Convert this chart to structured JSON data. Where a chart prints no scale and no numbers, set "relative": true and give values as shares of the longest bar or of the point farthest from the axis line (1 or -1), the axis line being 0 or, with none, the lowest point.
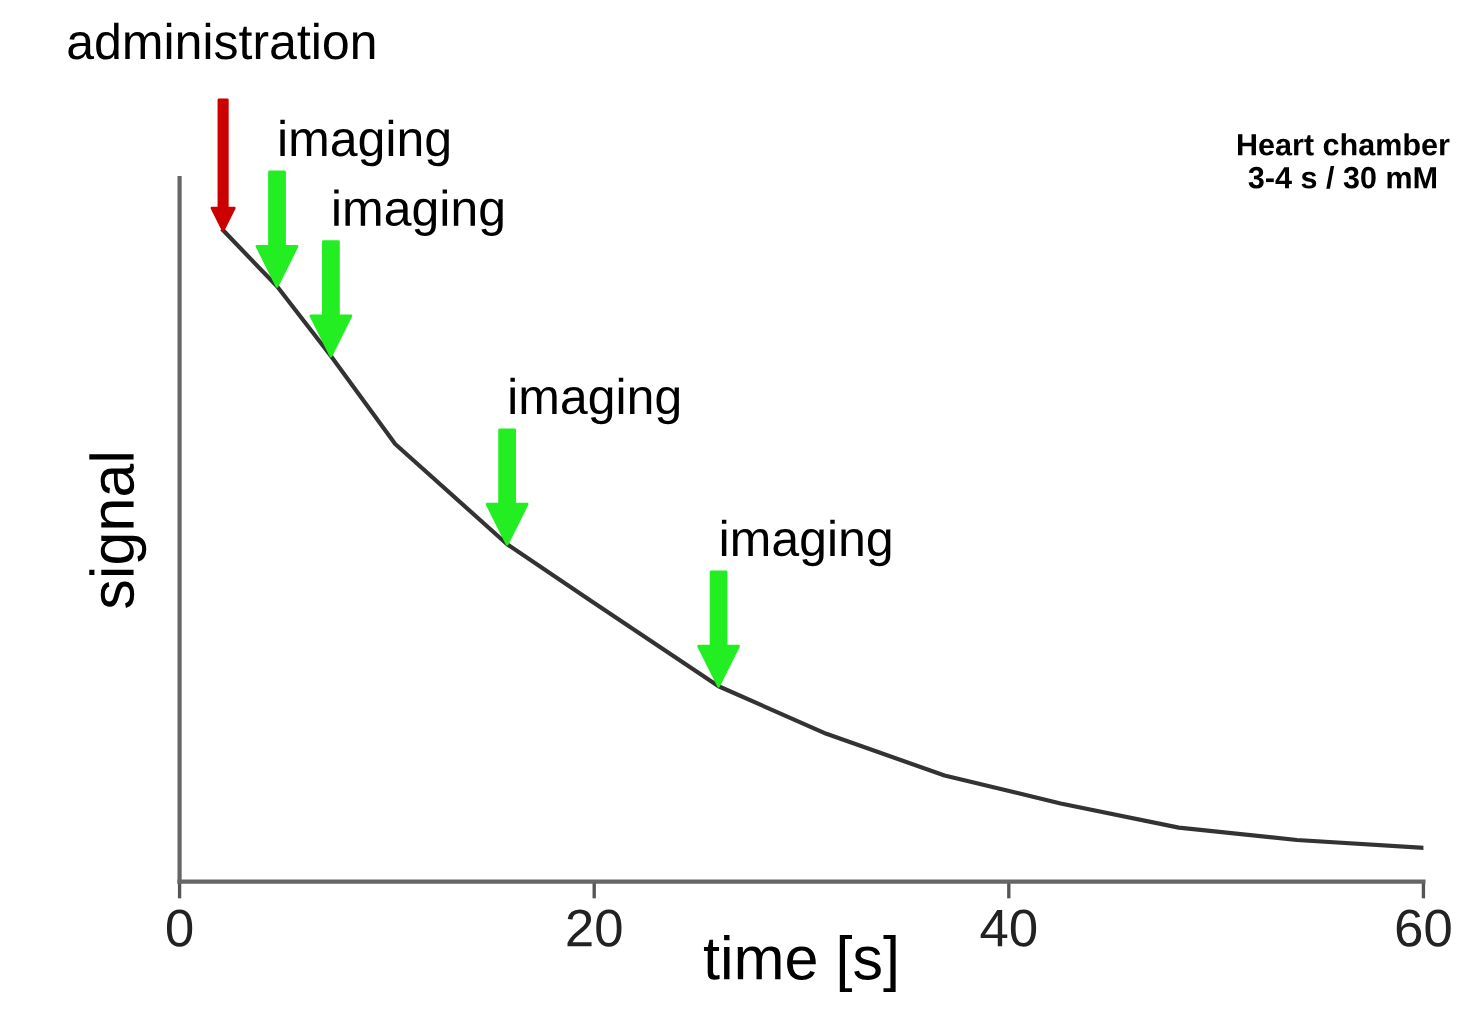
{
  "chart_data": {
    "type": "line",
    "relative": true,
    "xlabel": "time [s]",
    "ylabel": "signal",
    "xlim": [
      0,
      60
    ],
    "xticks": [
      0,
      20,
      40,
      60
    ],
    "grid": false,
    "marker": "none",
    "line_style": "solid",
    "x": [
      2.1,
      4.7,
      7.3,
      10.4,
      15.8,
      19.8,
      26.0,
      31.2,
      36.9,
      42.5,
      48.2,
      53.9,
      60
    ],
    "series": [
      {
        "color": "#333333",
        "values": [
          1,
          0.914,
          0.807,
          0.672,
          0.518,
          0.432,
          0.3,
          0.227,
          0.163,
          0.12,
          0.083,
          0.064,
          0.052
        ]
      }
    ],
    "annotations": [
      "administration",
      {
        "text": "imaging",
        "x": 4.7,
        "y": 0.914
      },
      {
        "text": "imaging",
        "x": 7.3,
        "y": 0.807
      },
      {
        "text": "imaging",
        "x": 15.8,
        "y": 0.518
      },
      {
        "text": "imaging",
        "x": 26.0,
        "y": 0.3
      },
      "Heart chamber\n3-4 s / 30 mM"
    ]
  }
}
